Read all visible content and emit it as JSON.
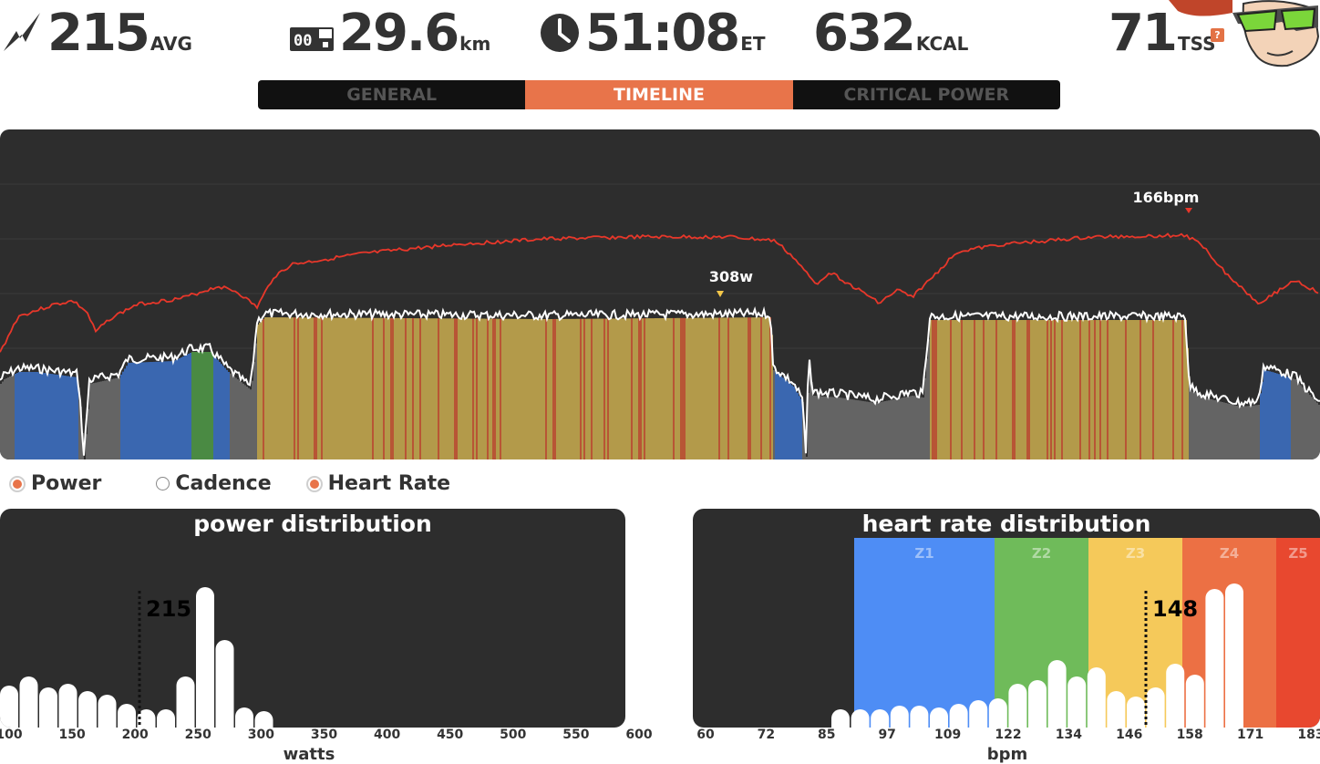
{
  "stats": {
    "avg_power": {
      "value": "215",
      "unit": "AVG",
      "icon": "lightning-bolt-icon"
    },
    "distance": {
      "value": "29.6",
      "unit": "km",
      "icon": "odometer-icon"
    },
    "time": {
      "value": "51:08",
      "unit": "ET",
      "icon": "clock-icon"
    },
    "kcal": {
      "value": "632",
      "unit": "KCAL"
    },
    "tss": {
      "value": "71",
      "unit": "TSS",
      "help": "?"
    }
  },
  "tabs": [
    {
      "label": "GENERAL",
      "active": false
    },
    {
      "label": "TIMELINE",
      "active": true
    },
    {
      "label": "CRITICAL POWER",
      "active": false
    }
  ],
  "timeline": {
    "max_power_label": "308w",
    "max_hr_label": "166bpm",
    "colors": {
      "hr_line": "#e8372a",
      "power_line": "#ffffff",
      "z1": "#646464",
      "z2": "#3a67b0",
      "z3": "#4a8a43",
      "z4": "#b39a4a",
      "z5": "#b85535",
      "background": "#2d2d2d"
    }
  },
  "legend": [
    {
      "label": "Power",
      "checked": true
    },
    {
      "label": "Cadence",
      "checked": false
    },
    {
      "label": "Heart Rate",
      "checked": true
    }
  ],
  "power_distribution": {
    "title": "power distribution",
    "avg_label": "215",
    "xlabel": "watts",
    "ticks": [
      "100",
      "150",
      "200",
      "250",
      "300",
      "350",
      "400",
      "450",
      "500",
      "550",
      "600"
    ],
    "avg_value": 215
  },
  "hr_distribution": {
    "title": "heart rate distribution",
    "avg_label": "148",
    "xlabel": "bpm",
    "ticks": [
      "60",
      "72",
      "85",
      "97",
      "109",
      "122",
      "134",
      "146",
      "158",
      "171",
      "183"
    ],
    "zones": [
      {
        "label": "Z1",
        "color": "#4e8df5"
      },
      {
        "label": "Z2",
        "color": "#6fbb5a"
      },
      {
        "label": "Z3",
        "color": "#f5c95a"
      },
      {
        "label": "Z4",
        "color": "#ec7044"
      },
      {
        "label": "Z5",
        "color": "#e8482f"
      }
    ],
    "avg_value": 148
  }
}
